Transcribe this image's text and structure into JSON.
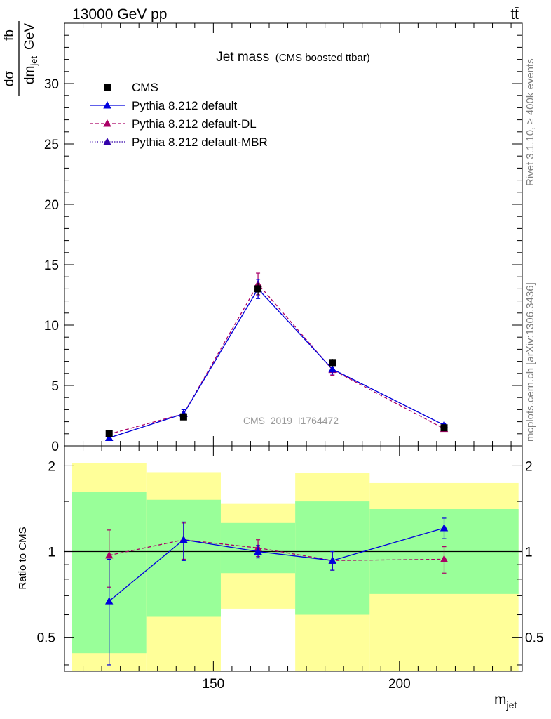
{
  "header": {
    "left": "13000 GeV pp",
    "right": "tt̄"
  },
  "side_text": {
    "top": "Rivet 3.1.10, ≥ 400k events",
    "bottom": "mcplots.cern.ch [arXiv:1306.3436]"
  },
  "watermark": "CMS_2019_I1764472",
  "colors": {
    "cms": "#000000",
    "default": "#0000dd",
    "dl": "#aa0066",
    "mbr": "#3300aa",
    "band_inner": "#99ff99",
    "band_outer": "#ffff99"
  },
  "chart_data": [
    {
      "type": "line",
      "title": "Jet mass",
      "subtitle": "(CMS boosted ttbar)",
      "ylabel_num": "dσ",
      "ylabel_den": "dm",
      "ylabel_den_sub": "jet",
      "yunit_num": "fb",
      "yunit_den": "GeV",
      "xlim": [
        110,
        233
      ],
      "ylim": [
        0,
        35
      ],
      "yticks": [
        0,
        5,
        10,
        15,
        20,
        25,
        30
      ],
      "legend_position": "top-left",
      "series": [
        {
          "name": "CMS",
          "x": [
            122,
            142,
            162,
            182,
            212
          ],
          "y": [
            1.0,
            2.4,
            13.0,
            6.9,
            1.5
          ],
          "yerr": [
            0.1,
            0.2,
            0.5,
            0.3,
            0.1
          ],
          "xerr": [
            10,
            10,
            10,
            10,
            20
          ]
        },
        {
          "name": "Pythia 8.212 default",
          "x": [
            122,
            142,
            162,
            182,
            212
          ],
          "y": [
            0.67,
            2.65,
            13.0,
            6.35,
            1.72
          ],
          "yerr": [
            0.15,
            0.35,
            0.8,
            0.4,
            0.15
          ]
        },
        {
          "name": "Pythia 8.212 default-DL",
          "x": [
            122,
            142,
            162,
            182,
            212
          ],
          "y": [
            0.97,
            2.65,
            13.4,
            6.3,
            1.42
          ],
          "yerr": [
            0.2,
            0.35,
            0.9,
            0.45,
            0.15
          ]
        },
        {
          "name": "Pythia 8.212 default-MBR",
          "x": [
            122,
            142,
            162,
            182,
            212
          ],
          "y": [
            0.67,
            2.65,
            13.0,
            6.35,
            1.72
          ],
          "yerr": [
            0.15,
            0.35,
            0.8,
            0.4,
            0.15
          ]
        }
      ]
    },
    {
      "type": "line",
      "ylabel": "Ratio to CMS",
      "xlabel": "m",
      "xlabel_sub": "jet",
      "xlim": [
        110,
        233
      ],
      "xticks": [
        150,
        200
      ],
      "ylog": true,
      "ylim": [
        0.38,
        2.35
      ],
      "yticks": [
        0.5,
        1,
        2
      ],
      "bins": [
        {
          "x0": 112,
          "x1": 132,
          "inner": [
            0.44,
            1.62
          ],
          "outer": [
            0.38,
            2.05
          ]
        },
        {
          "x0": 132,
          "x1": 152,
          "inner": [
            0.59,
            1.52
          ],
          "outer": [
            0.38,
            1.9
          ]
        },
        {
          "x0": 152,
          "x1": 172,
          "inner": [
            0.84,
            1.26
          ],
          "outer": [
            0.63,
            1.47
          ]
        },
        {
          "x0": 172,
          "x1": 192,
          "inner": [
            0.6,
            1.5
          ],
          "outer": [
            0.38,
            1.89
          ]
        },
        {
          "x0": 192,
          "x1": 232,
          "inner": [
            0.71,
            1.41
          ],
          "outer": [
            0.38,
            1.74
          ]
        }
      ],
      "series": [
        {
          "name": "Pythia 8.212 default",
          "x": [
            122,
            142,
            162,
            182,
            212
          ],
          "y": [
            0.67,
            1.1,
            1.0,
            0.93,
            1.21
          ],
          "yerr": [
            0.27,
            0.17,
            0.05,
            0.07,
            0.1
          ]
        },
        {
          "name": "Pythia 8.212 default-DL",
          "x": [
            122,
            142,
            162,
            182,
            212
          ],
          "y": [
            0.97,
            1.1,
            1.03,
            0.93,
            0.94
          ],
          "yerr": [
            0.22,
            0.16,
            0.07,
            0.07,
            0.1
          ]
        }
      ]
    }
  ]
}
